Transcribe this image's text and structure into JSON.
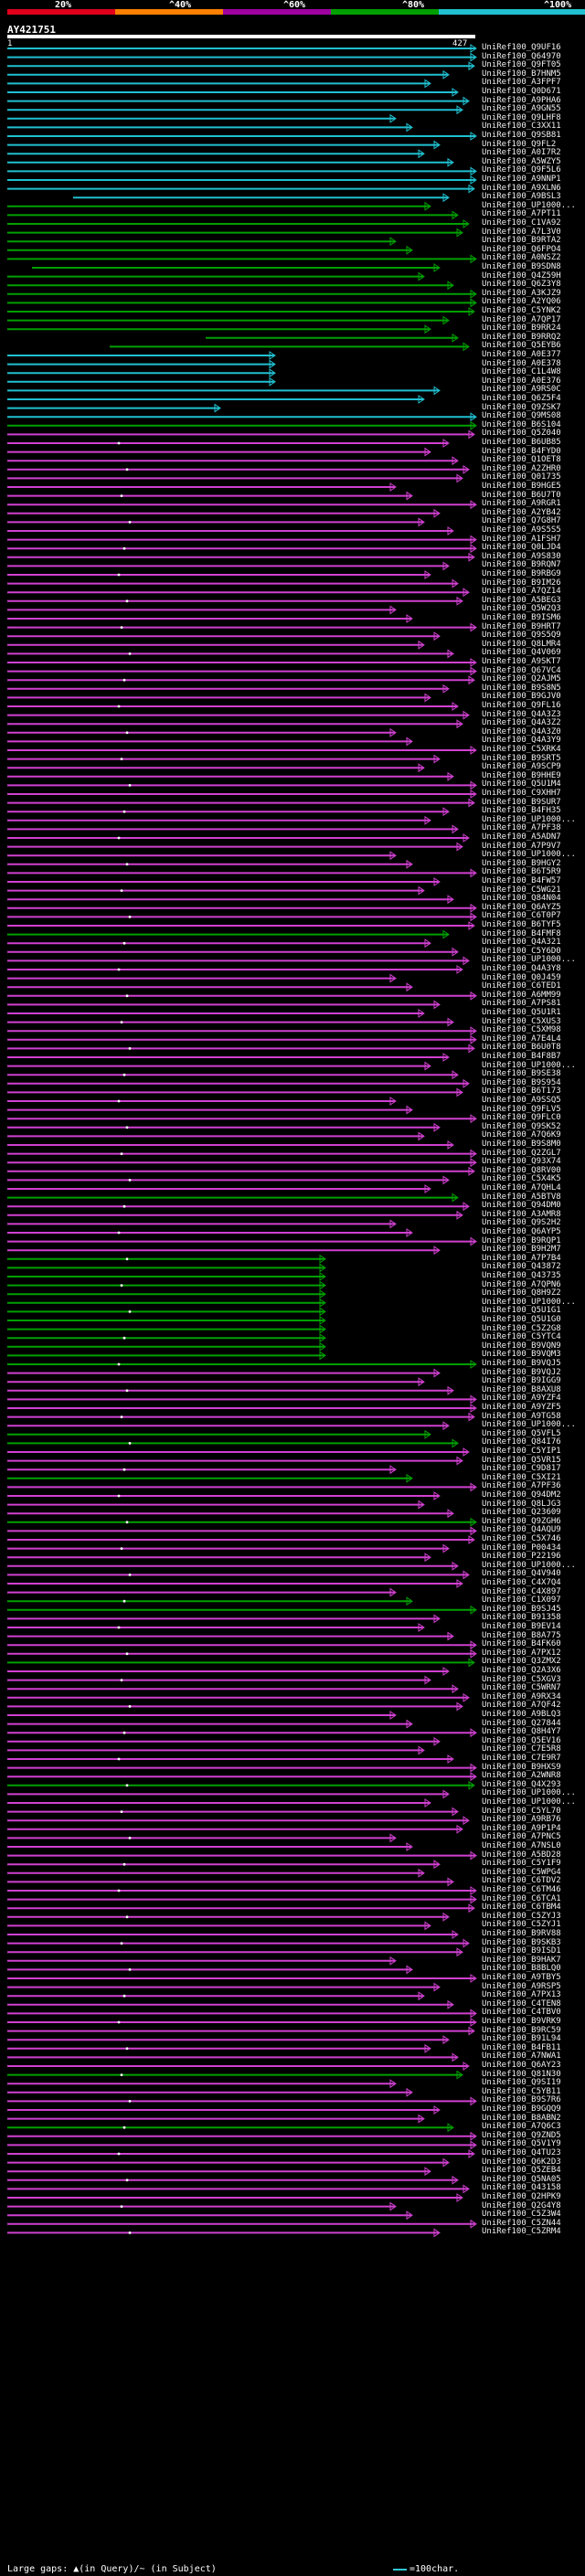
{
  "scale": {
    "labels": [
      "20%",
      "^40%",
      "^60%",
      "^80%",
      "^100%"
    ],
    "colors": [
      "#e0001b",
      "#ff7f00",
      "#a000a0",
      "#00a000",
      "#20c0d0"
    ]
  },
  "query": {
    "name": "AY421751",
    "start": "1",
    "end": "427"
  },
  "hits": [
    "UniRef100_Q9UF16",
    "UniRef100_Q64970",
    "UniRef100_Q9FT05",
    "UniRef100_B7HNM5",
    "UniRef100_A3FPF7",
    "UniRef100_Q0D671",
    "UniRef100_A9PHA6",
    "UniRef100_A9GN55",
    "UniRef100_Q9LHF8",
    "UniRef100_C3XX11",
    "UniRef100_Q9SB81",
    "UniRef100_Q9FL2",
    "UniRef100_A0I7R2",
    "UniRef100_A5WZY5",
    "UniRef100_Q9F5L6",
    "UniRef100_A9NNP1",
    "UniRef100_A9XLN6",
    "UniRef100_A9BSL3",
    "UniRef100_UP1000...",
    "UniRef100_A7PT11",
    "UniRef100_C1VA92",
    "UniRef100_A7L3V0",
    "UniRef100_B9RTA2",
    "UniRef100_Q6FPO4",
    "UniRef100_A0NSZ2",
    "UniRef100_B9SDN8",
    "UniRef100_Q4Z59H",
    "UniRef100_Q6Z3Y8",
    "UniRef100_A3KJZ9",
    "UniRef100_A2YQ06",
    "UniRef100_C5YNK2",
    "UniRef100_A7QP17",
    "UniRef100_B9RR24",
    "UniRef100_B9RRQ2",
    "UniRef100_Q5EYB6",
    "UniRef100_A0E377",
    "UniRef100_A0E378",
    "UniRef100_C1L4W8",
    "UniRef100_A0E376",
    "UniRef100_A9RS0C",
    "UniRef100_Q6Z5F4",
    "UniRef100_Q9ZSK7",
    "UniRef100_Q9MS08",
    "UniRef100_B6S104",
    "UniRef100_Q5Z040",
    "UniRef100_B6UB85",
    "UniRef100_B4FYD0",
    "UniRef100_Q1OET8",
    "UniRef100_A2ZHR0",
    "UniRef100_Q01735",
    "UniRef100_B9HGE5",
    "UniRef100_B6U7T0",
    "UniRef100_A9RGR1",
    "UniRef100_A2YB42",
    "UniRef100_Q7G8H7",
    "UniRef100_A9S5S5",
    "UniRef100_A1FSH7",
    "UniRef100_Q0LJD4",
    "UniRef100_A9S830",
    "UniRef100_B9RQN7",
    "UniRef100_B9RBG9",
    "UniRef100_B9IM26",
    "UniRef100_A7QZ14",
    "UniRef100_A5BEG3",
    "UniRef100_Q5W2Q3",
    "UniRef100_B9ISM6",
    "UniRef100_B9HRT7",
    "UniRef100_Q9S5Q9",
    "UniRef100_Q8LMR4",
    "UniRef100_Q4V069",
    "UniRef100_A9SKT7",
    "UniRef100_Q67VC4",
    "UniRef100_Q2AJM5",
    "UniRef100_B9S8N5",
    "UniRef100_B9GJV0",
    "UniRef100_Q9FL16",
    "UniRef100_Q4A3Z3",
    "UniRef100_Q4A3Z2",
    "UniRef100_Q4A3Z0",
    "UniRef100_Q4A3Y9",
    "UniRef100_C5XRK4",
    "UniRef100_B9SRT5",
    "UniRef100_A9SCP9",
    "UniRef100_B9HHE9",
    "UniRef100_Q5U1M4",
    "UniRef100_C9XHH7",
    "UniRef100_B9SUR7",
    "UniRef100_B4FH35",
    "UniRef100_UP1000...",
    "UniRef100_A7PF38",
    "UniRef100_A5ADN7",
    "UniRef100_A7P9V7",
    "UniRef100_UP1000...",
    "UniRef100_B9HGY2",
    "UniRef100_B6T5R9",
    "UniRef100_B4FW57",
    "UniRef100_C5WG21",
    "UniRef100_Q84N04",
    "UniRef100_Q6AYZ5",
    "UniRef100_C6T0P7",
    "UniRef100_B6TYF5",
    "UniRef100_B4FMF8",
    "UniRef100_Q4A321",
    "UniRef100_C5Y6D0",
    "UniRef100_UP1000...",
    "UniRef100_Q4A3Y8",
    "UniRef100_Q0J459",
    "UniRef100_C6TED1",
    "UniRef100_A6MM99",
    "UniRef100_A7PS81",
    "UniRef100_Q5U1R1",
    "UniRef100_C5XUS3",
    "UniRef100_C5XM98",
    "UniRef100_A7E4L4",
    "UniRef100_B6U0T8",
    "UniRef100_B4F8B7",
    "UniRef100_UP1000...",
    "UniRef100_B9SE38",
    "UniRef100_B9S954",
    "UniRef100_B6T173",
    "UniRef100_A9SSQ5",
    "UniRef100_Q9FLV5",
    "UniRef100_Q9FLC0",
    "UniRef100_Q9SK52",
    "UniRef100_A7Q6K9",
    "UniRef100_B9S8M0",
    "UniRef100_Q2ZGL7",
    "UniRef100_Q93X74",
    "UniRef100_Q8RV00",
    "UniRef100_C5X4K5",
    "UniRef100_A7QHL4",
    "UniRef100_A5BTV8",
    "UniRef100_Q94DM0",
    "UniRef100_A3AMR8",
    "UniRef100_Q9S2H2",
    "UniRef100_Q6AYP5",
    "UniRef100_B9RQP1",
    "UniRef100_B9H2M7",
    "UniRef100_A7P7B4",
    "UniRef100_Q43872",
    "UniRef100_Q43735",
    "UniRef100_A7QPN6",
    "UniRef100_Q8H9Z2",
    "UniRef100_UP1000...",
    "UniRef100_Q5U1G1",
    "UniRef100_Q5U1G0",
    "UniRef100_C5Z2G8",
    "UniRef100_C5YTC4",
    "UniRef100_B9VQN9",
    "UniRef100_B9VQM3",
    "UniRef100_B9VQJ5",
    "UniRef100_B9VQJ2",
    "UniRef100_B9IGG9",
    "UniRef100_B8AXU8",
    "UniRef100_A9YZF4",
    "UniRef100_A9YZF5",
    "UniRef100_A9TG58",
    "UniRef100_UP1000...",
    "UniRef100_Q5VFL5",
    "UniRef100_Q84I76",
    "UniRef100_C5YIP1",
    "UniRef100_Q5VR15",
    "UniRef100_C9D817",
    "UniRef100_C5XI21",
    "UniRef100_A7PF36",
    "UniRef100_Q94DM2",
    "UniRef100_Q8LJG3",
    "UniRef100_Q23609",
    "UniRef100_Q9ZGH6",
    "UniRef100_Q4AQU9",
    "UniRef100_C5X746",
    "UniRef100_P00434",
    "UniRef100_P22196",
    "UniRef100_UP1000...",
    "UniRef100_Q4V940",
    "UniRef100_C4X7Q4",
    "UniRef100_C4X897",
    "UniRef100_C1X097",
    "UniRef100_B9SJ45",
    "UniRef100_B91358",
    "UniRef100_B9EV14",
    "UniRef100_B8A775",
    "UniRef100_B4FK60",
    "UniRef100_A7PX12",
    "UniRef100_Q3ZMX2",
    "UniRef100_Q2A3X6",
    "UniRef100_C5XGV3",
    "UniRef100_C5WRN7",
    "UniRef100_A9RX34",
    "UniRef100_A7QF42",
    "UniRef100_A9BLQ3",
    "UniRef100_Q27844",
    "UniRef100_Q8H4Y7",
    "UniRef100_Q5EV16",
    "UniRef100_C7E5R8",
    "UniRef100_C7E9R7",
    "UniRef100_B9HXS9",
    "UniRef100_A2WNR8",
    "UniRef100_Q4X293",
    "UniRef100_UP1000...",
    "UniRef100_UP1000...",
    "UniRef100_C5YL70",
    "UniRef100_A9RB76",
    "UniRef100_A9P1P4",
    "UniRef100_A7PNC5",
    "UniRef100_A7NSL0",
    "UniRef100_A5BD28",
    "UniRef100_C5Y1F9",
    "UniRef100_C5WPG4",
    "UniRef100_C6TDV2",
    "UniRef100_C6TM46",
    "UniRef100_C6TCA1",
    "UniRef100_C6TBM4",
    "UniRef100_C5ZYJ3",
    "UniRef100_C5ZYJ1",
    "UniRef100_B9RV88",
    "UniRef100_B9SKB3",
    "UniRef100_B9ISD1",
    "UniRef100_B9HAK7",
    "UniRef100_B8BLQ0",
    "UniRef100_A9TBY5",
    "UniRef100_A9RSP5",
    "UniRef100_A7PX13",
    "UniRef100_C4TEN8",
    "UniRef100_C4TBV0",
    "UniRef100_B9VRK9",
    "UniRef100_B9RC59",
    "UniRef100_B91L94",
    "UniRef100_B4FB11",
    "UniRef100_A7NWA1",
    "UniRef100_Q6AY23",
    "UniRef100_Q81N30",
    "UniRef100_Q9SI19",
    "UniRef100_C5YB11",
    "UniRef100_B9S7R6",
    "UniRef100_B9GQQ9",
    "UniRef100_B8ABN2",
    "UniRef100_A7Q6C3",
    "UniRef100_Q9ZND5",
    "UniRef100_Q5V1Y9",
    "UniRef100_Q4TU23",
    "UniRef100_Q6K2D3",
    "UniRef100_Q5ZEB4",
    "UniRef100_Q5NA05",
    "UniRef100_Q43158",
    "UniRef100_Q2HPK9",
    "UniRef100_Q2G4Y8",
    "UniRef100_C5Z3W4",
    "UniRef100_C5ZN44",
    "UniRef100_C5ZRM4"
  ],
  "footer": {
    "gaps_text": "Large gaps: ▲(in Query)/~ (in Subject)",
    "legend_text": "=100char."
  }
}
